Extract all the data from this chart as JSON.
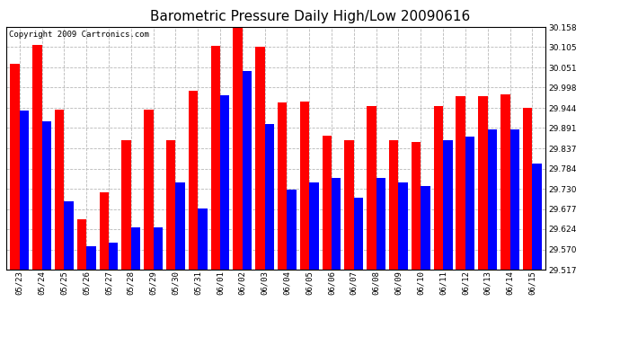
{
  "title": "Barometric Pressure Daily High/Low 20090616",
  "copyright": "Copyright 2009 Cartronics.com",
  "dates": [
    "05/23",
    "05/24",
    "05/25",
    "05/26",
    "05/27",
    "05/28",
    "05/29",
    "05/30",
    "05/31",
    "06/01",
    "06/02",
    "06/03",
    "06/04",
    "06/05",
    "06/06",
    "06/07",
    "06/08",
    "06/09",
    "06/10",
    "06/11",
    "06/12",
    "06/13",
    "06/14",
    "06/15"
  ],
  "highs": [
    30.06,
    30.11,
    29.94,
    29.65,
    29.72,
    29.858,
    29.94,
    29.858,
    29.99,
    30.108,
    30.158,
    30.105,
    29.958,
    29.96,
    29.87,
    29.86,
    29.95,
    29.86,
    29.855,
    29.95,
    29.975,
    29.975,
    29.98,
    29.944
  ],
  "lows": [
    29.938,
    29.908,
    29.698,
    29.578,
    29.588,
    29.628,
    29.628,
    29.748,
    29.678,
    29.978,
    30.042,
    29.902,
    29.728,
    29.748,
    29.758,
    29.708,
    29.758,
    29.748,
    29.738,
    29.858,
    29.868,
    29.888,
    29.888,
    29.798
  ],
  "high_color": "#ff0000",
  "low_color": "#0000ff",
  "background_color": "#ffffff",
  "plot_bg_color": "#ffffff",
  "grid_color": "#b8b8b8",
  "ymin": 29.517,
  "ymax": 30.158,
  "yticks": [
    29.517,
    29.57,
    29.624,
    29.677,
    29.73,
    29.784,
    29.837,
    29.891,
    29.944,
    29.998,
    30.051,
    30.105,
    30.158
  ],
  "title_fontsize": 11,
  "tick_fontsize": 6.5,
  "copyright_fontsize": 6.5
}
